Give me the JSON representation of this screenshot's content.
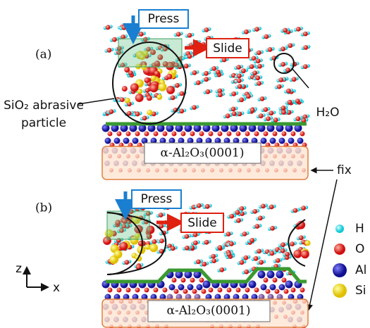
{
  "panels": [
    {
      "label": "(a)",
      "press": "Press",
      "slide": "Slide",
      "substrate": "α-Al₂O₃(0001)"
    },
    {
      "label": "(b)",
      "press": "Press",
      "slide": "Slide",
      "substrate": "α-Al₂O₃(0001)"
    }
  ],
  "annotations": {
    "water": "H₂O",
    "particle": [
      "SiO₂ abrasive",
      "particle"
    ],
    "fix": "fix"
  },
  "legend": [
    "H",
    "O",
    "Al",
    "Si"
  ],
  "axes": {
    "z": "z",
    "x": "x"
  }
}
